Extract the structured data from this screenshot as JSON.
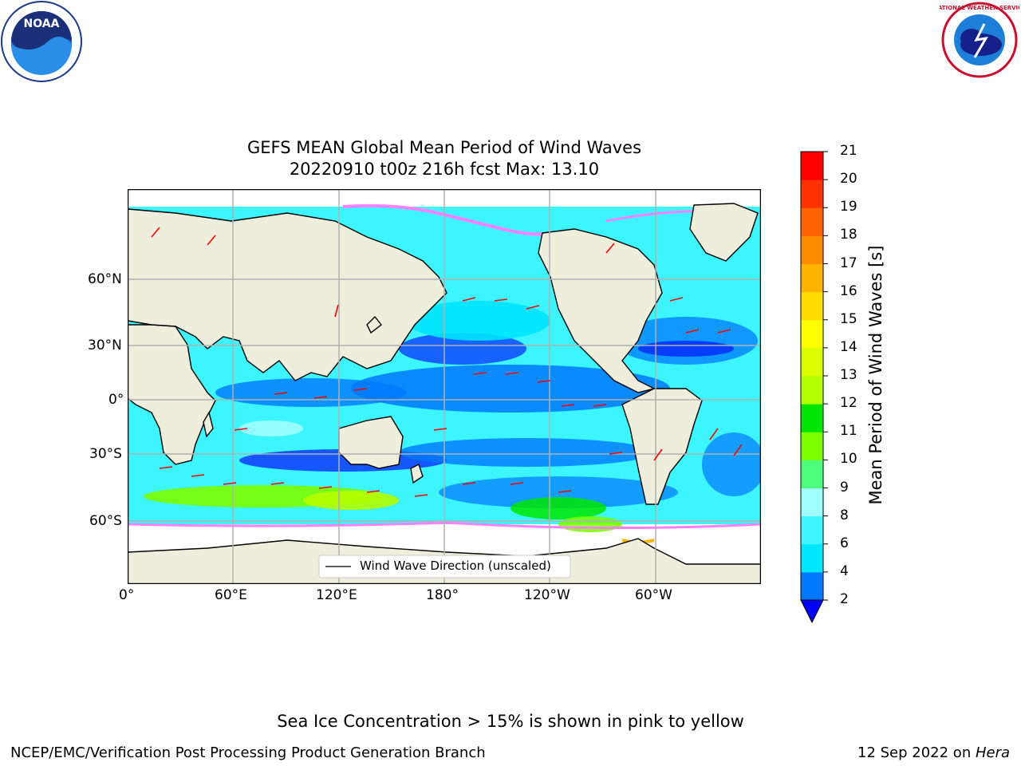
{
  "title_line1": "GEFS MEAN Global Mean Period of Wind Waves",
  "title_line2": "20220910 t00z 216h fcst   Max: 13.10",
  "lon_labels": [
    "0°",
    "60°E",
    "120°E",
    "180°",
    "120°W",
    "60°W"
  ],
  "lat_labels": [
    "60°N",
    "30°N",
    "0°",
    "30°S",
    "60°S"
  ],
  "legend_label": "Wind Wave Direction (unscaled)",
  "colorbar": {
    "label": "Mean Period of Wind Waves [s]",
    "levels": [
      2,
      4,
      6,
      8,
      9,
      10,
      11,
      12,
      13,
      14,
      15,
      16,
      17,
      18,
      19,
      20,
      21
    ],
    "colors": [
      "#0000ff",
      "#0078ff",
      "#00e6ff",
      "#3cf5ff",
      "#a0ffff",
      "#4cff7c",
      "#7cff00",
      "#00e600",
      "#b4ff00",
      "#dcff00",
      "#ffff00",
      "#ffdc00",
      "#ffb400",
      "#ff8c00",
      "#ff6400",
      "#ff3200",
      "#ff0000"
    ],
    "tick_labels": [
      "2",
      "4",
      "6",
      "8",
      "9",
      "10",
      "11",
      "12",
      "13",
      "14",
      "15",
      "16",
      "17",
      "18",
      "19",
      "20",
      "21"
    ]
  },
  "note": "Sea Ice Concentration > 15% is shown in pink to yellow",
  "footer_left": "NCEP/EMC/Verification Post Processing Product Generation Branch",
  "footer_right_prefix": "12 Sep 2022 on ",
  "footer_right_host": "Hera",
  "logo_left": "noaa-logo",
  "logo_right": "nws-logo",
  "noaa_logo_text": "NOAA",
  "nws_logo_text": "NATIONAL WEATHER SERVICE"
}
